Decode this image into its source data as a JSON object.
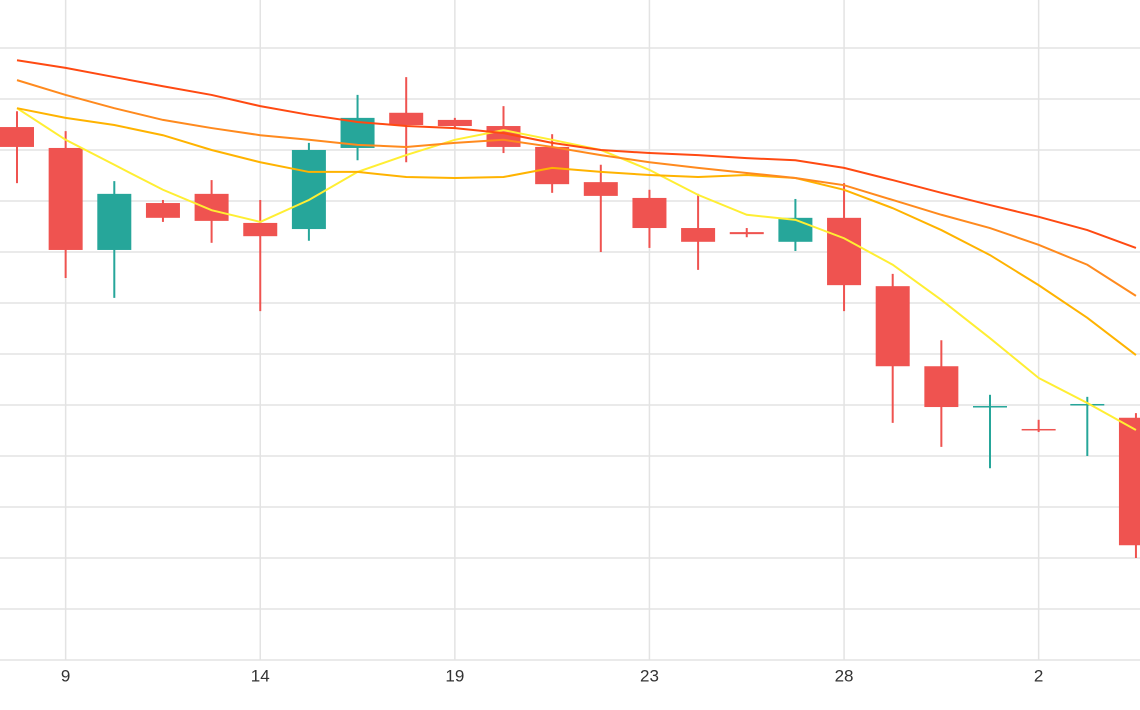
{
  "chart_data": {
    "type": "candlestick",
    "categories": [
      null,
      "9",
      null,
      null,
      null,
      "14",
      null,
      null,
      null,
      "19",
      null,
      null,
      null,
      "23",
      null,
      null,
      null,
      "28",
      null,
      null,
      null,
      "2",
      null,
      null
    ],
    "open": [
      10.45,
      10.04,
      8.04,
      8.96,
      9.14,
      8.57,
      8.45,
      10.04,
      10.73,
      10.59,
      10.47,
      10.06,
      9.37,
      9.06,
      8.47,
      8.39,
      8.2,
      8.67,
      7.33,
      5.76,
      4.96,
      4.53,
      5.0,
      4.75
    ],
    "high": [
      10.76,
      10.37,
      9.39,
      9.02,
      9.41,
      9.02,
      10.14,
      11.08,
      11.43,
      10.63,
      10.86,
      10.31,
      9.71,
      9.22,
      9.14,
      8.47,
      9.04,
      9.35,
      7.57,
      6.27,
      5.2,
      4.71,
      5.16,
      4.84
    ],
    "low": [
      9.35,
      7.49,
      7.1,
      8.59,
      8.18,
      6.84,
      8.22,
      9.8,
      9.76,
      10.43,
      9.94,
      9.16,
      8.0,
      8.08,
      7.65,
      8.29,
      8.02,
      6.84,
      4.65,
      4.18,
      3.76,
      4.47,
      4.0,
      2.0
    ],
    "close": [
      10.06,
      8.04,
      9.14,
      8.67,
      8.61,
      8.31,
      10.0,
      10.63,
      10.49,
      10.47,
      10.06,
      9.33,
      9.1,
      8.47,
      8.2,
      8.35,
      8.67,
      7.35,
      5.76,
      4.96,
      4.98,
      4.51,
      5.02,
      2.25
    ],
    "up_color": "#26a69a",
    "down_color": "#ef5350",
    "lines": [
      {
        "color": "#ffee33",
        "values": [
          10.82,
          10.2,
          9.71,
          9.22,
          8.82,
          8.59,
          9.02,
          9.57,
          9.9,
          10.2,
          10.39,
          10.2,
          10.0,
          9.61,
          9.12,
          8.73,
          8.63,
          8.27,
          7.75,
          7.06,
          6.31,
          5.53,
          5.04,
          4.51
        ]
      },
      {
        "color": "#ffb300",
        "values": [
          10.82,
          10.63,
          10.49,
          10.29,
          10.0,
          9.76,
          9.57,
          9.57,
          9.47,
          9.45,
          9.47,
          9.65,
          9.57,
          9.51,
          9.47,
          9.51,
          9.45,
          9.22,
          8.86,
          8.43,
          7.94,
          7.35,
          6.71,
          5.98
        ]
      },
      {
        "color": "#ff8a1e",
        "values": [
          11.37,
          11.08,
          10.82,
          10.59,
          10.43,
          10.29,
          10.2,
          10.1,
          10.06,
          10.14,
          10.2,
          10.06,
          9.9,
          9.76,
          9.65,
          9.55,
          9.45,
          9.31,
          9.02,
          8.73,
          8.47,
          8.14,
          7.75,
          7.14
        ]
      },
      {
        "color": "#ff4a12",
        "values": [
          11.76,
          11.61,
          11.43,
          11.25,
          11.08,
          10.86,
          10.69,
          10.55,
          10.47,
          10.43,
          10.33,
          10.14,
          10.0,
          9.94,
          9.9,
          9.84,
          9.8,
          9.65,
          9.41,
          9.16,
          8.92,
          8.69,
          8.43,
          8.08
        ]
      }
    ],
    "ylim": [
      0,
      13
    ],
    "ygrid": [
      0,
      1,
      2,
      3,
      4,
      5,
      6,
      7,
      8,
      9,
      10,
      11,
      12
    ],
    "grid": true
  }
}
